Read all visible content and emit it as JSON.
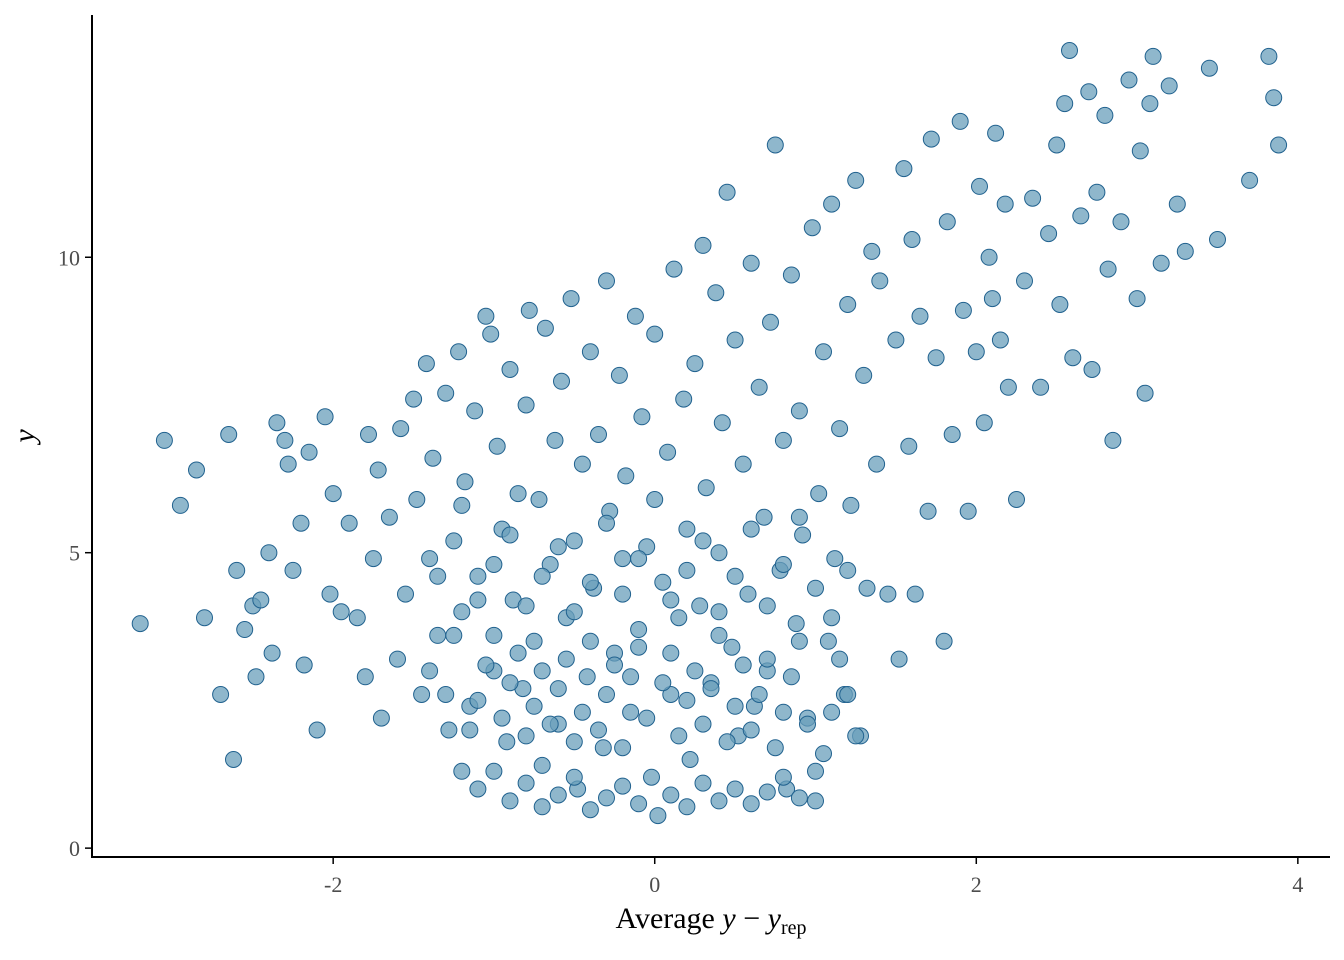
{
  "chart_data": {
    "type": "scatter",
    "title": "",
    "xlabel": {
      "prefix": "Average ",
      "var1": "y",
      "operator": " − ",
      "var2": "y",
      "subscript": "rep"
    },
    "ylabel": "y",
    "xlim": [
      -3.5,
      4.2
    ],
    "ylim": [
      -0.15,
      14.1
    ],
    "xticks": [
      {
        "value": -2,
        "label": "-2"
      },
      {
        "value": 0,
        "label": "0"
      },
      {
        "value": 2,
        "label": "2"
      },
      {
        "value": 4,
        "label": "4"
      }
    ],
    "yticks": [
      {
        "value": 0,
        "label": "0"
      },
      {
        "value": 5,
        "label": "5"
      },
      {
        "value": 10,
        "label": "10"
      }
    ],
    "grid": false,
    "legend": "none",
    "colors": {
      "fill": "#6a9fbb",
      "stroke": "#21628f",
      "fill_opacity": 0.75
    },
    "series": [
      {
        "points": [
          [
            -3.2,
            3.8
          ],
          [
            -3.05,
            6.9
          ],
          [
            -2.95,
            5.8
          ],
          [
            -2.85,
            6.4
          ],
          [
            -2.8,
            3.9
          ],
          [
            -2.7,
            2.6
          ],
          [
            -2.65,
            7.0
          ],
          [
            -2.62,
            1.5
          ],
          [
            -2.6,
            4.7
          ],
          [
            -2.55,
            3.7
          ],
          [
            -2.5,
            4.1
          ],
          [
            -2.48,
            2.9
          ],
          [
            -2.45,
            4.2
          ],
          [
            -2.4,
            5.0
          ],
          [
            -2.38,
            3.3
          ],
          [
            -2.35,
            7.2
          ],
          [
            -2.3,
            6.9
          ],
          [
            -2.28,
            6.5
          ],
          [
            -2.25,
            4.7
          ],
          [
            -2.2,
            5.5
          ],
          [
            -2.18,
            3.1
          ],
          [
            -2.15,
            6.7
          ],
          [
            -2.1,
            2.0
          ],
          [
            -2.05,
            7.3
          ],
          [
            -2.02,
            4.3
          ],
          [
            -2.0,
            6.0
          ],
          [
            -1.95,
            4.0
          ],
          [
            -1.9,
            5.5
          ],
          [
            -1.85,
            3.9
          ],
          [
            -1.8,
            2.9
          ],
          [
            -1.78,
            7.0
          ],
          [
            -1.75,
            4.9
          ],
          [
            -1.72,
            6.4
          ],
          [
            -1.7,
            2.2
          ],
          [
            -1.65,
            5.6
          ],
          [
            -1.6,
            3.2
          ],
          [
            -1.58,
            7.1
          ],
          [
            -1.55,
            4.3
          ],
          [
            -1.5,
            7.6
          ],
          [
            -1.48,
            5.9
          ],
          [
            -1.45,
            2.6
          ],
          [
            -1.42,
            8.2
          ],
          [
            -1.4,
            4.9
          ],
          [
            -1.38,
            6.6
          ],
          [
            -1.35,
            3.6
          ],
          [
            -1.3,
            7.7
          ],
          [
            -1.28,
            2.0
          ],
          [
            -1.25,
            5.2
          ],
          [
            -1.22,
            8.4
          ],
          [
            -1.2,
            4.0
          ],
          [
            -1.18,
            6.2
          ],
          [
            -1.15,
            2.4
          ],
          [
            -1.12,
            7.4
          ],
          [
            -1.1,
            4.6
          ],
          [
            -1.05,
            9.0
          ],
          [
            -1.02,
            8.7
          ],
          [
            -1.0,
            3.0
          ],
          [
            -0.98,
            6.8
          ],
          [
            -0.95,
            5.4
          ],
          [
            -0.92,
            1.8
          ],
          [
            -0.9,
            8.1
          ],
          [
            -0.88,
            4.2
          ],
          [
            -0.85,
            6.0
          ],
          [
            -0.82,
            2.7
          ],
          [
            -0.8,
            7.5
          ],
          [
            -0.78,
            9.1
          ],
          [
            -0.75,
            3.5
          ],
          [
            -0.72,
            5.9
          ],
          [
            -0.7,
            1.4
          ],
          [
            -0.68,
            8.8
          ],
          [
            -0.65,
            4.8
          ],
          [
            -0.62,
            6.9
          ],
          [
            -0.6,
            2.1
          ],
          [
            -0.58,
            7.9
          ],
          [
            -0.55,
            3.9
          ],
          [
            -0.52,
            9.3
          ],
          [
            -0.5,
            5.2
          ],
          [
            -0.48,
            1.0
          ],
          [
            -0.45,
            6.5
          ],
          [
            -0.42,
            2.9
          ],
          [
            -0.4,
            8.4
          ],
          [
            -0.38,
            4.4
          ],
          [
            -0.35,
            7.0
          ],
          [
            -0.32,
            1.7
          ],
          [
            -0.3,
            9.6
          ],
          [
            -0.28,
            5.7
          ],
          [
            -0.25,
            3.3
          ],
          [
            -0.22,
            8.0
          ],
          [
            -0.2,
            4.9
          ],
          [
            -0.18,
            6.3
          ],
          [
            -0.15,
            2.3
          ],
          [
            -0.12,
            9.0
          ],
          [
            -0.1,
            3.7
          ],
          [
            -0.08,
            7.3
          ],
          [
            -0.05,
            5.1
          ],
          [
            -0.02,
            1.2
          ],
          [
            0.0,
            8.7
          ],
          [
            0.02,
            0.55
          ],
          [
            0.05,
            4.5
          ],
          [
            0.08,
            6.7
          ],
          [
            0.1,
            2.6
          ],
          [
            0.12,
            9.8
          ],
          [
            0.15,
            3.9
          ],
          [
            0.18,
            7.6
          ],
          [
            0.2,
            5.4
          ],
          [
            0.22,
            1.5
          ],
          [
            0.25,
            8.2
          ],
          [
            0.28,
            4.1
          ],
          [
            0.3,
            10.2
          ],
          [
            0.32,
            6.1
          ],
          [
            0.35,
            2.8
          ],
          [
            0.38,
            9.4
          ],
          [
            0.4,
            5.0
          ],
          [
            0.42,
            7.2
          ],
          [
            0.45,
            11.1
          ],
          [
            0.48,
            3.4
          ],
          [
            0.5,
            8.6
          ],
          [
            0.52,
            1.9
          ],
          [
            0.55,
            6.5
          ],
          [
            0.58,
            4.3
          ],
          [
            0.6,
            9.9
          ],
          [
            0.62,
            2.4
          ],
          [
            0.65,
            7.8
          ],
          [
            0.68,
            5.6
          ],
          [
            0.7,
            3.0
          ],
          [
            0.72,
            8.9
          ],
          [
            0.75,
            11.9
          ],
          [
            0.78,
            4.7
          ],
          [
            0.8,
            6.9
          ],
          [
            0.82,
            1.0
          ],
          [
            0.85,
            9.7
          ],
          [
            0.88,
            3.8
          ],
          [
            0.9,
            7.4
          ],
          [
            0.92,
            5.3
          ],
          [
            0.95,
            2.2
          ],
          [
            0.98,
            10.5
          ],
          [
            1.0,
            0.8
          ],
          [
            1.02,
            6.0
          ],
          [
            1.05,
            8.4
          ],
          [
            1.08,
            3.5
          ],
          [
            1.1,
            10.9
          ],
          [
            1.12,
            4.9
          ],
          [
            1.15,
            7.1
          ],
          [
            1.18,
            2.6
          ],
          [
            1.2,
            9.2
          ],
          [
            1.22,
            5.8
          ],
          [
            1.25,
            11.3
          ],
          [
            1.28,
            1.9
          ],
          [
            1.3,
            8.0
          ],
          [
            1.32,
            4.4
          ],
          [
            1.35,
            10.1
          ],
          [
            1.38,
            6.5
          ],
          [
            1.4,
            9.6
          ],
          [
            1.45,
            4.3
          ],
          [
            1.5,
            8.6
          ],
          [
            1.52,
            3.2
          ],
          [
            1.55,
            11.5
          ],
          [
            1.58,
            6.8
          ],
          [
            1.6,
            10.3
          ],
          [
            1.62,
            4.3
          ],
          [
            1.65,
            9.0
          ],
          [
            1.7,
            5.7
          ],
          [
            1.72,
            12.0
          ],
          [
            1.75,
            8.3
          ],
          [
            1.8,
            3.5
          ],
          [
            1.82,
            10.6
          ],
          [
            1.85,
            7.0
          ],
          [
            1.9,
            12.3
          ],
          [
            1.92,
            9.1
          ],
          [
            1.95,
            5.7
          ],
          [
            2.0,
            8.4
          ],
          [
            2.02,
            11.2
          ],
          [
            2.05,
            7.2
          ],
          [
            2.08,
            10.0
          ],
          [
            2.1,
            9.3
          ],
          [
            2.12,
            12.1
          ],
          [
            2.15,
            8.6
          ],
          [
            2.18,
            10.9
          ],
          [
            2.2,
            7.8
          ],
          [
            2.25,
            5.9
          ],
          [
            2.3,
            9.6
          ],
          [
            2.35,
            11.0
          ],
          [
            2.4,
            7.8
          ],
          [
            2.45,
            10.4
          ],
          [
            2.5,
            11.9
          ],
          [
            2.52,
            9.2
          ],
          [
            2.55,
            12.6
          ],
          [
            2.58,
            13.5
          ],
          [
            2.6,
            8.3
          ],
          [
            2.65,
            10.7
          ],
          [
            2.7,
            12.8
          ],
          [
            2.72,
            8.1
          ],
          [
            2.75,
            11.1
          ],
          [
            2.8,
            12.4
          ],
          [
            2.82,
            9.8
          ],
          [
            2.85,
            6.9
          ],
          [
            2.9,
            10.6
          ],
          [
            2.95,
            13.0
          ],
          [
            3.0,
            9.3
          ],
          [
            3.02,
            11.8
          ],
          [
            3.05,
            7.7
          ],
          [
            3.08,
            12.6
          ],
          [
            3.1,
            13.4
          ],
          [
            3.15,
            9.9
          ],
          [
            3.2,
            12.9
          ],
          [
            3.25,
            10.9
          ],
          [
            3.3,
            10.1
          ],
          [
            3.45,
            13.2
          ],
          [
            3.5,
            10.3
          ],
          [
            3.7,
            11.3
          ],
          [
            3.82,
            13.4
          ],
          [
            3.85,
            12.7
          ],
          [
            3.88,
            11.9
          ],
          [
            -1.1,
            1.0
          ],
          [
            -1.0,
            1.3
          ],
          [
            -0.9,
            0.8
          ],
          [
            -0.8,
            1.1
          ],
          [
            -0.7,
            0.7
          ],
          [
            -0.6,
            0.9
          ],
          [
            -0.5,
            1.2
          ],
          [
            -0.4,
            0.65
          ],
          [
            -0.3,
            0.85
          ],
          [
            -0.2,
            1.05
          ],
          [
            -0.1,
            0.75
          ],
          [
            0.1,
            0.9
          ],
          [
            0.2,
            0.7
          ],
          [
            0.3,
            1.1
          ],
          [
            0.4,
            0.8
          ],
          [
            0.5,
            1.0
          ],
          [
            0.6,
            0.75
          ],
          [
            0.7,
            0.95
          ],
          [
            0.8,
            1.2
          ],
          [
            0.9,
            0.85
          ],
          [
            1.0,
            1.3
          ],
          [
            1.05,
            1.6
          ],
          [
            -1.15,
            2.0
          ],
          [
            -1.1,
            2.5
          ],
          [
            -1.05,
            3.1
          ],
          [
            -1.0,
            3.6
          ],
          [
            -0.95,
            2.2
          ],
          [
            -0.9,
            2.8
          ],
          [
            -0.85,
            3.3
          ],
          [
            -0.8,
            1.9
          ],
          [
            -0.75,
            2.4
          ],
          [
            -0.7,
            3.0
          ],
          [
            -0.65,
            2.1
          ],
          [
            -0.6,
            2.7
          ],
          [
            -0.55,
            3.2
          ],
          [
            -0.5,
            1.8
          ],
          [
            -0.45,
            2.3
          ],
          [
            -0.4,
            3.5
          ],
          [
            -0.35,
            2.0
          ],
          [
            -0.3,
            2.6
          ],
          [
            -0.25,
            3.1
          ],
          [
            -0.2,
            1.7
          ],
          [
            -0.15,
            2.9
          ],
          [
            -0.1,
            3.4
          ],
          [
            -0.05,
            2.2
          ],
          [
            0.05,
            2.8
          ],
          [
            0.1,
            3.3
          ],
          [
            0.15,
            1.9
          ],
          [
            0.2,
            2.5
          ],
          [
            0.25,
            3.0
          ],
          [
            0.3,
            2.1
          ],
          [
            0.35,
            2.7
          ],
          [
            0.4,
            3.6
          ],
          [
            0.45,
            1.8
          ],
          [
            0.5,
            2.4
          ],
          [
            0.55,
            3.1
          ],
          [
            0.6,
            2.0
          ],
          [
            0.65,
            2.6
          ],
          [
            0.7,
            3.2
          ],
          [
            0.75,
            1.7
          ],
          [
            0.8,
            2.3
          ],
          [
            0.85,
            2.9
          ],
          [
            0.9,
            3.5
          ],
          [
            0.95,
            2.1
          ],
          [
            -1.1,
            4.2
          ],
          [
            -1.0,
            4.8
          ],
          [
            -0.9,
            5.3
          ],
          [
            -0.8,
            4.1
          ],
          [
            -0.7,
            4.6
          ],
          [
            -0.6,
            5.1
          ],
          [
            -0.5,
            4.0
          ],
          [
            -0.4,
            4.5
          ],
          [
            -0.3,
            5.5
          ],
          [
            -0.2,
            4.3
          ],
          [
            -0.1,
            4.9
          ],
          [
            0.0,
            5.9
          ],
          [
            0.1,
            4.2
          ],
          [
            0.2,
            4.7
          ],
          [
            0.3,
            5.2
          ],
          [
            0.4,
            4.0
          ],
          [
            0.5,
            4.6
          ],
          [
            0.6,
            5.4
          ],
          [
            0.7,
            4.1
          ],
          [
            0.8,
            4.8
          ],
          [
            0.9,
            5.6
          ],
          [
            1.0,
            4.4
          ],
          [
            -1.3,
            2.6
          ],
          [
            -1.25,
            3.6
          ],
          [
            -1.2,
            1.3
          ],
          [
            -1.2,
            5.8
          ],
          [
            -1.35,
            4.6
          ],
          [
            -1.4,
            3.0
          ],
          [
            1.1,
            2.3
          ],
          [
            1.15,
            3.2
          ],
          [
            1.2,
            2.6
          ],
          [
            1.25,
            1.9
          ],
          [
            1.1,
            3.9
          ],
          [
            1.2,
            4.7
          ]
        ]
      }
    ]
  }
}
